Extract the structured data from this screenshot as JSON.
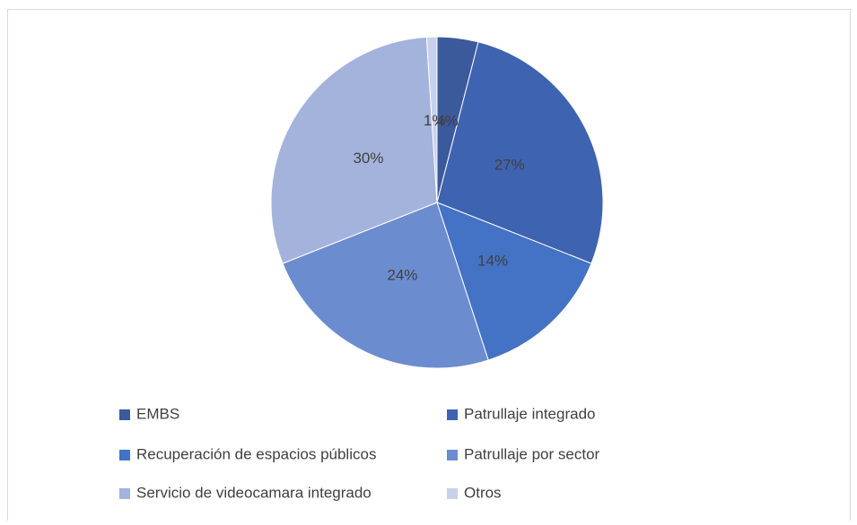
{
  "chart_data": {
    "type": "pie",
    "categories": [
      "EMBS",
      "Patrullaje integrado",
      "Recuperación de espacios públicos",
      "Patrullaje por sector",
      "Servicio de videocamara integrado",
      "Otros"
    ],
    "values": [
      4,
      27,
      14,
      24,
      30,
      1
    ],
    "value_labels": [
      "4%",
      "27%",
      "14%",
      "24%",
      "30%",
      "1%"
    ],
    "colors": [
      "#3a5a9c",
      "#3e63b0",
      "#4472c4",
      "#6c8cd0",
      "#a3b3dc",
      "#c9d1ea"
    ],
    "legend": "bottom"
  }
}
